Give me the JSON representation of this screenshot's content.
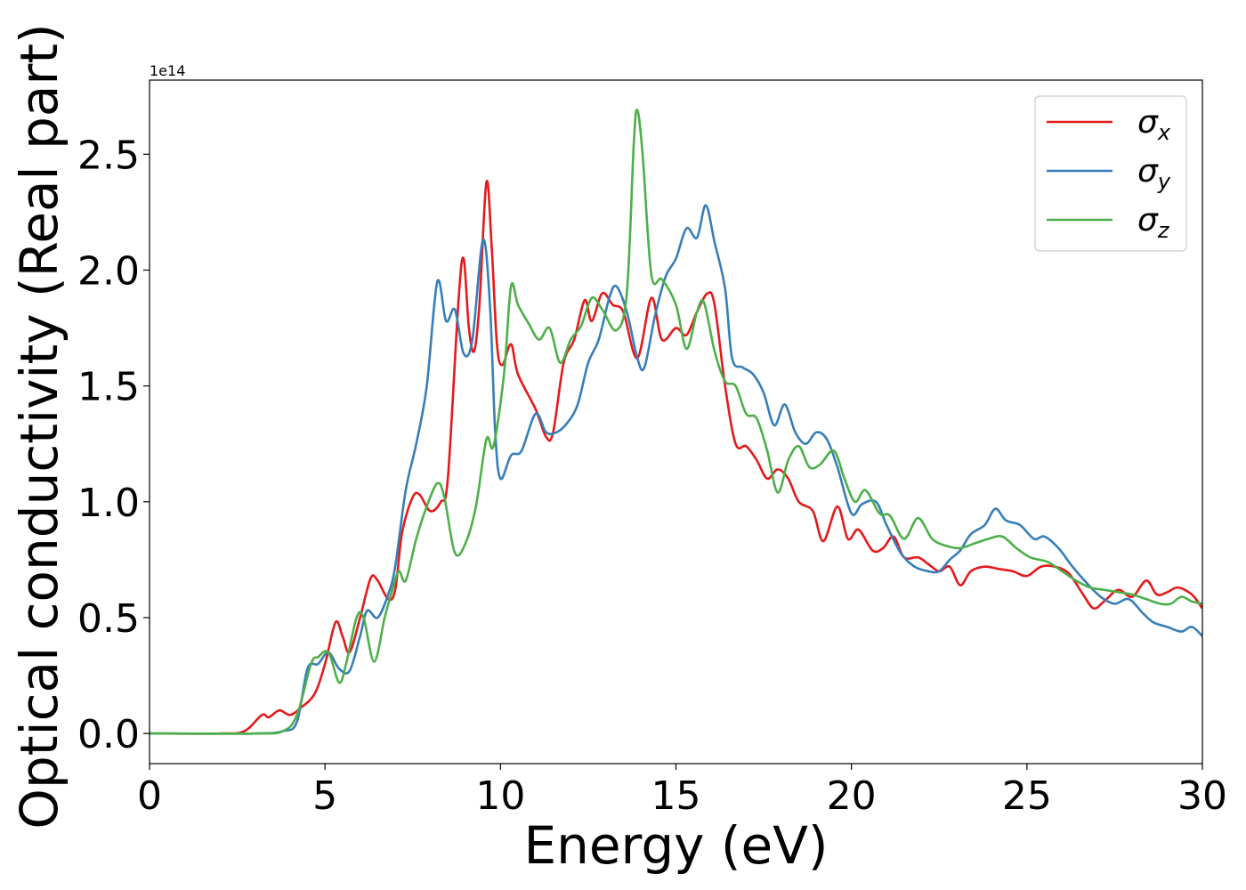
{
  "chart_data": {
    "type": "line",
    "title": "",
    "xlabel": "Energy (eV)",
    "ylabel": "Optical conductivity (Real part)",
    "y_offset_label": "1e14",
    "xlim": [
      0,
      30
    ],
    "ylim": [
      -0.13,
      2.82
    ],
    "xticks": [
      0,
      5,
      10,
      15,
      20,
      25,
      30
    ],
    "yticks": [
      0.0,
      0.5,
      1.0,
      1.5,
      2.0,
      2.5
    ],
    "xtick_labels": [
      "0",
      "5",
      "10",
      "15",
      "20",
      "25",
      "30"
    ],
    "ytick_labels": [
      "0.0",
      "0.5",
      "1.0",
      "1.5",
      "2.0",
      "2.5"
    ],
    "grid": false,
    "legend_position": "top-right",
    "series": [
      {
        "name": "σx",
        "symbol": "σ",
        "subscript": "x",
        "color": "#e41a1c",
        "points": [
          [
            0,
            0
          ],
          [
            2,
            0
          ],
          [
            2.7,
            0.01
          ],
          [
            3.2,
            0.08
          ],
          [
            3.4,
            0.07
          ],
          [
            3.7,
            0.1
          ],
          [
            4.0,
            0.08
          ],
          [
            4.3,
            0.11
          ],
          [
            4.7,
            0.17
          ],
          [
            5.0,
            0.3
          ],
          [
            5.3,
            0.48
          ],
          [
            5.5,
            0.42
          ],
          [
            5.7,
            0.35
          ],
          [
            6.0,
            0.5
          ],
          [
            6.3,
            0.67
          ],
          [
            6.5,
            0.66
          ],
          [
            6.8,
            0.58
          ],
          [
            7.0,
            0.62
          ],
          [
            7.2,
            0.87
          ],
          [
            7.5,
            1.02
          ],
          [
            7.7,
            1.03
          ],
          [
            8.0,
            0.96
          ],
          [
            8.3,
            1.0
          ],
          [
            8.5,
            1.1
          ],
          [
            8.8,
            1.86
          ],
          [
            8.95,
            2.05
          ],
          [
            9.1,
            1.75
          ],
          [
            9.25,
            1.65
          ],
          [
            9.4,
            1.85
          ],
          [
            9.6,
            2.38
          ],
          [
            9.75,
            2.1
          ],
          [
            9.9,
            1.68
          ],
          [
            10.05,
            1.59
          ],
          [
            10.3,
            1.68
          ],
          [
            10.5,
            1.55
          ],
          [
            11.0,
            1.4
          ],
          [
            11.3,
            1.28
          ],
          [
            11.5,
            1.3
          ],
          [
            11.8,
            1.6
          ],
          [
            12.1,
            1.7
          ],
          [
            12.4,
            1.87
          ],
          [
            12.6,
            1.78
          ],
          [
            12.9,
            1.9
          ],
          [
            13.2,
            1.85
          ],
          [
            13.5,
            1.82
          ],
          [
            13.9,
            1.62
          ],
          [
            14.3,
            1.88
          ],
          [
            14.6,
            1.7
          ],
          [
            15.0,
            1.75
          ],
          [
            15.3,
            1.72
          ],
          [
            15.6,
            1.82
          ],
          [
            15.9,
            1.9
          ],
          [
            16.1,
            1.85
          ],
          [
            16.4,
            1.5
          ],
          [
            16.7,
            1.25
          ],
          [
            17.0,
            1.24
          ],
          [
            17.3,
            1.18
          ],
          [
            17.6,
            1.1
          ],
          [
            17.9,
            1.14
          ],
          [
            18.2,
            1.1
          ],
          [
            18.5,
            1.0
          ],
          [
            18.9,
            0.96
          ],
          [
            19.2,
            0.83
          ],
          [
            19.6,
            0.98
          ],
          [
            19.9,
            0.84
          ],
          [
            20.2,
            0.88
          ],
          [
            20.6,
            0.79
          ],
          [
            20.9,
            0.8
          ],
          [
            21.2,
            0.85
          ],
          [
            21.5,
            0.76
          ],
          [
            21.9,
            0.76
          ],
          [
            22.2,
            0.73
          ],
          [
            22.5,
            0.7
          ],
          [
            22.8,
            0.72
          ],
          [
            23.1,
            0.64
          ],
          [
            23.4,
            0.7
          ],
          [
            23.8,
            0.72
          ],
          [
            24.2,
            0.71
          ],
          [
            24.6,
            0.7
          ],
          [
            25.0,
            0.68
          ],
          [
            25.4,
            0.72
          ],
          [
            25.8,
            0.72
          ],
          [
            26.2,
            0.69
          ],
          [
            26.6,
            0.6
          ],
          [
            26.9,
            0.54
          ],
          [
            27.2,
            0.57
          ],
          [
            27.6,
            0.62
          ],
          [
            28.0,
            0.59
          ],
          [
            28.4,
            0.66
          ],
          [
            28.7,
            0.6
          ],
          [
            29.0,
            0.61
          ],
          [
            29.3,
            0.63
          ],
          [
            29.7,
            0.6
          ],
          [
            30.0,
            0.54
          ]
        ]
      },
      {
        "name": "σy",
        "symbol": "σ",
        "subscript": "y",
        "color": "#377eb8",
        "points": [
          [
            0,
            0
          ],
          [
            3,
            0
          ],
          [
            3.8,
            0.01
          ],
          [
            4.2,
            0.05
          ],
          [
            4.5,
            0.28
          ],
          [
            4.8,
            0.3
          ],
          [
            5.1,
            0.35
          ],
          [
            5.4,
            0.28
          ],
          [
            5.7,
            0.27
          ],
          [
            6.0,
            0.42
          ],
          [
            6.2,
            0.53
          ],
          [
            6.5,
            0.5
          ],
          [
            6.8,
            0.6
          ],
          [
            7.0,
            0.72
          ],
          [
            7.3,
            1.05
          ],
          [
            7.6,
            1.25
          ],
          [
            7.9,
            1.5
          ],
          [
            8.2,
            1.95
          ],
          [
            8.45,
            1.78
          ],
          [
            8.7,
            1.83
          ],
          [
            8.95,
            1.64
          ],
          [
            9.2,
            1.7
          ],
          [
            9.5,
            2.13
          ],
          [
            9.7,
            1.85
          ],
          [
            9.85,
            1.3
          ],
          [
            10.0,
            1.1
          ],
          [
            10.3,
            1.2
          ],
          [
            10.6,
            1.22
          ],
          [
            11.0,
            1.38
          ],
          [
            11.3,
            1.3
          ],
          [
            11.6,
            1.3
          ],
          [
            11.9,
            1.34
          ],
          [
            12.2,
            1.42
          ],
          [
            12.5,
            1.6
          ],
          [
            12.8,
            1.7
          ],
          [
            13.1,
            1.88
          ],
          [
            13.3,
            1.93
          ],
          [
            13.6,
            1.82
          ],
          [
            13.9,
            1.62
          ],
          [
            14.1,
            1.58
          ],
          [
            14.4,
            1.8
          ],
          [
            14.7,
            1.97
          ],
          [
            15.0,
            2.05
          ],
          [
            15.3,
            2.18
          ],
          [
            15.6,
            2.14
          ],
          [
            15.85,
            2.28
          ],
          [
            16.1,
            2.12
          ],
          [
            16.4,
            1.92
          ],
          [
            16.6,
            1.62
          ],
          [
            16.9,
            1.58
          ],
          [
            17.2,
            1.55
          ],
          [
            17.5,
            1.47
          ],
          [
            17.8,
            1.33
          ],
          [
            18.1,
            1.42
          ],
          [
            18.4,
            1.3
          ],
          [
            18.7,
            1.25
          ],
          [
            19.0,
            1.3
          ],
          [
            19.3,
            1.27
          ],
          [
            19.6,
            1.15
          ],
          [
            20.0,
            0.95
          ],
          [
            20.3,
            0.99
          ],
          [
            20.7,
            1.0
          ],
          [
            21.0,
            0.9
          ],
          [
            21.4,
            0.78
          ],
          [
            21.8,
            0.72
          ],
          [
            22.2,
            0.7
          ],
          [
            22.5,
            0.7
          ],
          [
            22.8,
            0.75
          ],
          [
            23.1,
            0.79
          ],
          [
            23.4,
            0.86
          ],
          [
            23.8,
            0.9
          ],
          [
            24.1,
            0.97
          ],
          [
            24.4,
            0.92
          ],
          [
            24.8,
            0.9
          ],
          [
            25.2,
            0.84
          ],
          [
            25.5,
            0.85
          ],
          [
            25.9,
            0.8
          ],
          [
            26.3,
            0.72
          ],
          [
            26.7,
            0.65
          ],
          [
            27.1,
            0.59
          ],
          [
            27.5,
            0.56
          ],
          [
            27.9,
            0.58
          ],
          [
            28.3,
            0.52
          ],
          [
            28.6,
            0.48
          ],
          [
            29.0,
            0.46
          ],
          [
            29.4,
            0.44
          ],
          [
            29.7,
            0.46
          ],
          [
            30.0,
            0.42
          ]
        ]
      },
      {
        "name": "σz",
        "symbol": "σ",
        "subscript": "z",
        "color": "#4daf4a",
        "points": [
          [
            0,
            0
          ],
          [
            3,
            0
          ],
          [
            3.8,
            0.01
          ],
          [
            4.2,
            0.08
          ],
          [
            4.6,
            0.3
          ],
          [
            4.8,
            0.33
          ],
          [
            5.1,
            0.35
          ],
          [
            5.4,
            0.22
          ],
          [
            5.6,
            0.3
          ],
          [
            5.9,
            0.5
          ],
          [
            6.1,
            0.5
          ],
          [
            6.4,
            0.31
          ],
          [
            6.7,
            0.5
          ],
          [
            6.9,
            0.61
          ],
          [
            7.1,
            0.7
          ],
          [
            7.3,
            0.66
          ],
          [
            7.6,
            0.84
          ],
          [
            7.9,
            0.98
          ],
          [
            8.2,
            1.08
          ],
          [
            8.4,
            1.02
          ],
          [
            8.7,
            0.78
          ],
          [
            9.0,
            0.82
          ],
          [
            9.3,
            0.98
          ],
          [
            9.6,
            1.27
          ],
          [
            9.8,
            1.24
          ],
          [
            10.1,
            1.55
          ],
          [
            10.3,
            1.93
          ],
          [
            10.5,
            1.85
          ],
          [
            10.8,
            1.77
          ],
          [
            11.1,
            1.7
          ],
          [
            11.4,
            1.75
          ],
          [
            11.7,
            1.6
          ],
          [
            12.0,
            1.7
          ],
          [
            12.3,
            1.76
          ],
          [
            12.6,
            1.88
          ],
          [
            12.9,
            1.83
          ],
          [
            13.3,
            1.74
          ],
          [
            13.6,
            1.9
          ],
          [
            13.8,
            2.55
          ],
          [
            13.9,
            2.69
          ],
          [
            14.05,
            2.5
          ],
          [
            14.3,
            1.98
          ],
          [
            14.6,
            1.96
          ],
          [
            15.0,
            1.85
          ],
          [
            15.3,
            1.66
          ],
          [
            15.6,
            1.82
          ],
          [
            15.8,
            1.86
          ],
          [
            16.1,
            1.65
          ],
          [
            16.4,
            1.52
          ],
          [
            16.7,
            1.5
          ],
          [
            17.0,
            1.38
          ],
          [
            17.3,
            1.36
          ],
          [
            17.6,
            1.22
          ],
          [
            17.9,
            1.04
          ],
          [
            18.2,
            1.18
          ],
          [
            18.5,
            1.24
          ],
          [
            18.8,
            1.15
          ],
          [
            19.1,
            1.16
          ],
          [
            19.5,
            1.22
          ],
          [
            19.8,
            1.1
          ],
          [
            20.1,
            1.0
          ],
          [
            20.4,
            1.05
          ],
          [
            20.8,
            0.95
          ],
          [
            21.1,
            0.94
          ],
          [
            21.5,
            0.84
          ],
          [
            21.9,
            0.93
          ],
          [
            22.3,
            0.84
          ],
          [
            22.7,
            0.81
          ],
          [
            23.1,
            0.8
          ],
          [
            23.5,
            0.82
          ],
          [
            23.9,
            0.84
          ],
          [
            24.3,
            0.85
          ],
          [
            24.7,
            0.8
          ],
          [
            25.1,
            0.76
          ],
          [
            25.6,
            0.74
          ],
          [
            26.0,
            0.7
          ],
          [
            26.4,
            0.66
          ],
          [
            26.8,
            0.63
          ],
          [
            27.2,
            0.62
          ],
          [
            27.6,
            0.61
          ],
          [
            28.0,
            0.6
          ],
          [
            28.4,
            0.58
          ],
          [
            28.8,
            0.56
          ],
          [
            29.1,
            0.56
          ],
          [
            29.4,
            0.59
          ],
          [
            29.7,
            0.57
          ],
          [
            30.0,
            0.56
          ]
        ]
      }
    ]
  }
}
